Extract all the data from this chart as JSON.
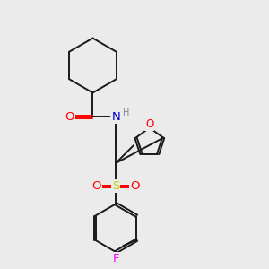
{
  "bg_color": "#ebebeb",
  "line_color": "#1a1a1a",
  "atom_colors": {
    "O": "#ff0000",
    "N": "#0000cd",
    "S": "#cccc00",
    "F": "#ff00ff",
    "H": "#778899",
    "C": "#1a1a1a"
  },
  "font_size": 8.5,
  "lw": 1.4
}
